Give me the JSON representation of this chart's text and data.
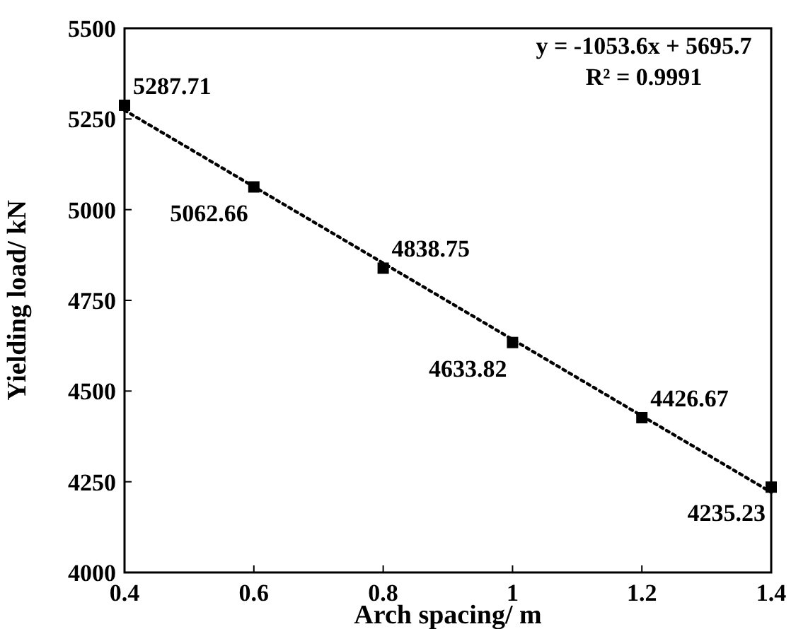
{
  "chart_data": {
    "type": "scatter",
    "xlabel": "Arch spacing/ m",
    "ylabel": "Yielding load/ kN",
    "x": [
      0.4,
      0.6,
      0.8,
      1,
      1.2,
      1.4
    ],
    "series": [
      {
        "color": "#000000",
        "marker": "square",
        "values": [
          5287.71,
          5062.66,
          4838.75,
          4633.82,
          4426.67,
          4235.23
        ],
        "value_labels": [
          "5287.71",
          "5062.66",
          "4838.75",
          "4633.82",
          "4426.67",
          "4235.23"
        ]
      },
      {
        "type": "line",
        "color": "#000000",
        "marker": "none",
        "line_style": "dotted",
        "x": [
          0.4,
          1.4
        ],
        "values": [
          5274,
          4221
        ]
      }
    ],
    "xlim": [
      0.4,
      1.4
    ],
    "xticks": [
      0.4,
      0.6,
      0.8,
      1,
      1.2,
      1.4
    ],
    "ylim": [
      4000,
      5500
    ],
    "yticks": [
      4000,
      4250,
      4500,
      4750,
      5000,
      5250,
      5500
    ],
    "grid": false,
    "annotations": [
      "y = -1053.6x + 5695.7",
      "R² = 0.9991"
    ]
  }
}
